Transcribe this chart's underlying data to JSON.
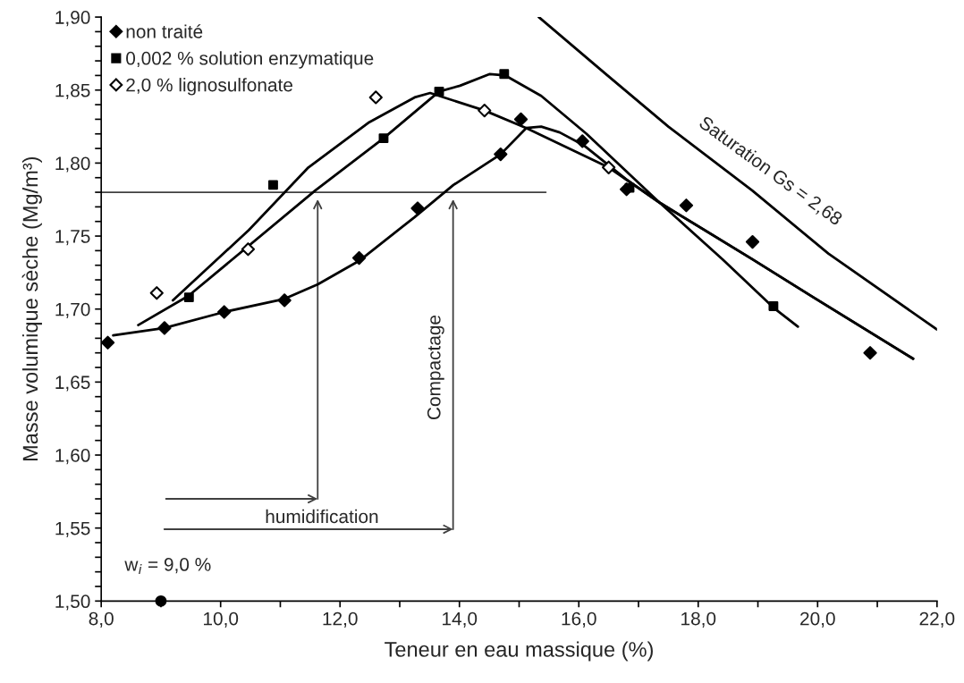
{
  "chart_data": {
    "type": "scatter",
    "xlabel": "Teneur en eau massique (%)",
    "ylabel": "Masse volumique sèche (Mg/m³)",
    "xlim": [
      8.0,
      22.0
    ],
    "ylim": [
      1.5,
      1.9
    ],
    "xticks": [
      {
        "value": 8,
        "label": "8,0"
      },
      {
        "value": 10,
        "label": "10,0"
      },
      {
        "value": 12,
        "label": "12,0"
      },
      {
        "value": 14,
        "label": "14,0"
      },
      {
        "value": 16,
        "label": "16,0"
      },
      {
        "value": 18,
        "label": "18,0"
      },
      {
        "value": 20,
        "label": "20,0"
      },
      {
        "value": 22,
        "label": "22,0"
      }
    ],
    "yticks": [
      {
        "value": 1.5,
        "label": "1,50"
      },
      {
        "value": 1.55,
        "label": "1,55"
      },
      {
        "value": 1.6,
        "label": "1,60"
      },
      {
        "value": 1.65,
        "label": "1,65"
      },
      {
        "value": 1.7,
        "label": "1,70"
      },
      {
        "value": 1.75,
        "label": "1,75"
      },
      {
        "value": 1.8,
        "label": "1,80"
      },
      {
        "value": 1.85,
        "label": "1,85"
      },
      {
        "value": 1.9,
        "label": "1,90"
      }
    ],
    "grid": false,
    "legend": "top left",
    "series": [
      {
        "name": "non traité",
        "marker": "diamond",
        "color": "#000000",
        "x": [
          8.11,
          9.06,
          10.06,
          11.07,
          12.32,
          13.3,
          14.69,
          15.03,
          16.06,
          16.8,
          17.8,
          18.91,
          20.88
        ],
        "values": [
          1.677,
          1.687,
          1.698,
          1.706,
          1.735,
          1.769,
          1.806,
          1.83,
          1.815,
          1.782,
          1.771,
          1.746,
          1.67
        ]
      },
      {
        "name": "0,002 % solution enzymatique",
        "marker": "square",
        "color": "#000000",
        "x": [
          9.47,
          10.88,
          12.73,
          13.66,
          14.75,
          16.85,
          19.26
        ],
        "values": [
          1.708,
          1.785,
          1.817,
          1.849,
          1.861,
          1.783,
          1.702
        ]
      },
      {
        "name": "2,0 % lignosulfonate",
        "marker": "diamond",
        "color": "#ffffff",
        "x": [
          8.93,
          10.46,
          12.6,
          14.42,
          16.5
        ],
        "values": [
          1.711,
          1.741,
          1.845,
          1.836,
          1.797
        ]
      },
      {
        "type": "line",
        "color": "#000000",
        "x": [
          8.2,
          9.06,
          10.06,
          11.07,
          11.63,
          12.32,
          13.25,
          13.9,
          14.69,
          15.12,
          15.37,
          15.68,
          16.09,
          16.79,
          17.35,
          18.91,
          19.93,
          21.6
        ],
        "values": [
          1.682,
          1.687,
          1.698,
          1.707,
          1.717,
          1.733,
          1.763,
          1.785,
          1.806,
          1.824,
          1.825,
          1.821,
          1.812,
          1.789,
          1.773,
          1.734,
          1.708,
          1.666
        ]
      },
      {
        "type": "line",
        "color": "#000000",
        "x": [
          8.62,
          9.46,
          11.58,
          12.73,
          13.66,
          14.01,
          14.51,
          14.77,
          15.37,
          16.13,
          17.35,
          18.41,
          19.26,
          19.67
        ],
        "values": [
          1.689,
          1.709,
          1.781,
          1.817,
          1.849,
          1.853,
          1.861,
          1.86,
          1.846,
          1.82,
          1.773,
          1.734,
          1.701,
          1.688
        ]
      },
      {
        "type": "line",
        "color": "#000000",
        "x": [
          9.2,
          10.47,
          11.47,
          12.49,
          13.25,
          13.51,
          14.42,
          15.12,
          16.5,
          17.35,
          18.91,
          19.93,
          21.6
        ],
        "values": [
          1.706,
          1.754,
          1.797,
          1.828,
          1.845,
          1.848,
          1.836,
          1.824,
          1.797,
          1.773,
          1.734,
          1.708,
          1.666
        ]
      },
      {
        "type": "line",
        "color": "#000000",
        "x": [
          15.33,
          16.48,
          17.5,
          18.91,
          20.18,
          22.0
        ],
        "values": [
          1.9,
          1.86,
          1.825,
          1.781,
          1.738,
          1.686
        ]
      },
      {
        "marker": "circle",
        "color": "#000000",
        "x": [
          9.0
        ],
        "values": [
          1.5
        ]
      }
    ],
    "ref_lines": [
      {
        "axis": "y",
        "value": 1.78,
        "color": "#404040"
      }
    ],
    "annotations": [
      "Saturation Gs = 2,68",
      "w$_{i}$ = 9,0 %",
      "humidification",
      "Compactage"
    ]
  }
}
